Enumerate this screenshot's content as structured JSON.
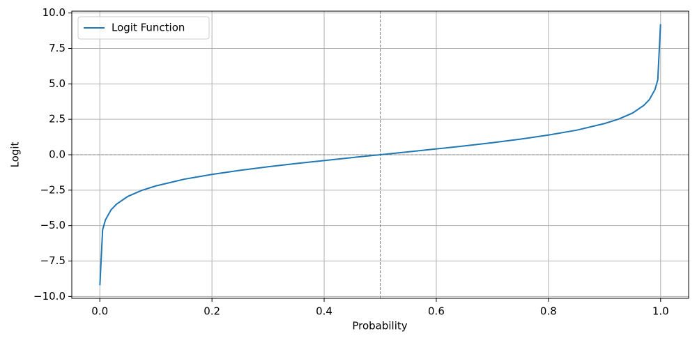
{
  "chart_data": {
    "type": "line",
    "x_label": "Probability",
    "y_label": "Logit",
    "x": [
      0.0001,
      0.005,
      0.01,
      0.02,
      0.03,
      0.05,
      0.075,
      0.1,
      0.15,
      0.2,
      0.25,
      0.3,
      0.35,
      0.4,
      0.45,
      0.5,
      0.55,
      0.6,
      0.65,
      0.7,
      0.75,
      0.8,
      0.85,
      0.9,
      0.925,
      0.95,
      0.97,
      0.98,
      0.99,
      0.995,
      0.9999
    ],
    "series": [
      {
        "name": "Logit Function",
        "color": "#1f77b4",
        "values": [
          -9.21,
          -5.29,
          -4.6,
          -3.89,
          -3.48,
          -2.94,
          -2.51,
          -2.2,
          -1.73,
          -1.39,
          -1.1,
          -0.85,
          -0.62,
          -0.41,
          -0.2,
          0,
          0.2,
          0.41,
          0.62,
          0.85,
          1.1,
          1.39,
          1.73,
          2.2,
          2.51,
          2.94,
          3.48,
          3.89,
          4.6,
          5.29,
          9.21
        ]
      }
    ],
    "xlim": [
      -0.05,
      1.05
    ],
    "ylim": [
      -10.13,
      10.13
    ],
    "xticks": [
      {
        "value": 0,
        "label": "0.0"
      },
      0.2,
      0.4,
      0.6,
      0.8,
      {
        "value": 1,
        "label": "1.0"
      }
    ],
    "yticks": [
      {
        "value": -10,
        "label": "−10.0"
      },
      {
        "value": -7.5,
        "label": "−7.5"
      },
      {
        "value": -5,
        "label": "−5.0"
      },
      {
        "value": -2.5,
        "label": "−2.5"
      },
      {
        "value": 0,
        "label": "0.0"
      },
      2.5,
      {
        "value": 5,
        "label": "5.0"
      },
      7.5,
      {
        "value": 10,
        "label": "10.0"
      }
    ],
    "hlines": [
      0
    ],
    "vlines": [
      0.5
    ],
    "reference_line_color": "#808080",
    "grid": true,
    "legend": "upper left"
  }
}
